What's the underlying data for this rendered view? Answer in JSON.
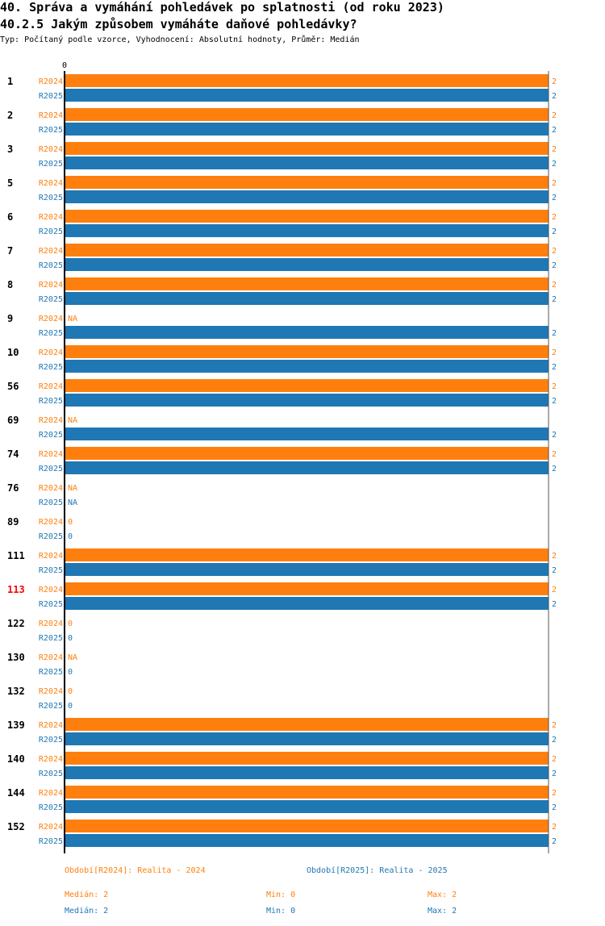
{
  "header": {
    "title": "40. Správa a vymáhání pohledávek po splatnosti (od roku 2023)",
    "subtitle": "40.2.5 Jakým způsobem vymáháte daňové pohledávky?",
    "meta": "Typ: Počítaný podle vzorce, Vyhodnocení: Absolutní hodnoty, Průměr: Medián"
  },
  "chart_data": {
    "type": "bar",
    "orientation": "horizontal",
    "xlim": [
      0,
      2
    ],
    "x_tick_labels": [
      "0"
    ],
    "series_colors": {
      "R2024": "#ff7f0e",
      "R2025": "#1f77b4"
    },
    "highlight_color": "#ff0000",
    "categories": [
      {
        "id": "1",
        "R2024": 2,
        "R2025": 2
      },
      {
        "id": "2",
        "R2024": 2,
        "R2025": 2
      },
      {
        "id": "3",
        "R2024": 2,
        "R2025": 2
      },
      {
        "id": "5",
        "R2024": 2,
        "R2025": 2
      },
      {
        "id": "6",
        "R2024": 2,
        "R2025": 2
      },
      {
        "id": "7",
        "R2024": 2,
        "R2025": 2
      },
      {
        "id": "8",
        "R2024": 2,
        "R2025": 2
      },
      {
        "id": "9",
        "R2024": "NA",
        "R2025": 2
      },
      {
        "id": "10",
        "R2024": 2,
        "R2025": 2
      },
      {
        "id": "56",
        "R2024": 2,
        "R2025": 2
      },
      {
        "id": "69",
        "R2024": "NA",
        "R2025": 2
      },
      {
        "id": "74",
        "R2024": 2,
        "R2025": 2
      },
      {
        "id": "76",
        "R2024": "NA",
        "R2025": "NA"
      },
      {
        "id": "89",
        "R2024": 0,
        "R2025": 0
      },
      {
        "id": "111",
        "R2024": 2,
        "R2025": 2
      },
      {
        "id": "113",
        "R2024": 2,
        "R2025": 2,
        "highlight": true
      },
      {
        "id": "122",
        "R2024": 0,
        "R2025": 0
      },
      {
        "id": "130",
        "R2024": "NA",
        "R2025": 0
      },
      {
        "id": "132",
        "R2024": 0,
        "R2025": 0
      },
      {
        "id": "139",
        "R2024": 2,
        "R2025": 2
      },
      {
        "id": "140",
        "R2024": 2,
        "R2025": 2
      },
      {
        "id": "144",
        "R2024": 2,
        "R2025": 2
      },
      {
        "id": "152",
        "R2024": 2,
        "R2025": 2
      }
    ],
    "series": [
      "R2024",
      "R2025"
    ]
  },
  "legend": {
    "r2024": "Období[R2024]: Realita - 2024",
    "r2025": "Období[R2025]: Realita - 2025"
  },
  "stats": {
    "r2024": {
      "median": "Medián: 2",
      "min": "Min: 0",
      "max": "Max: 2"
    },
    "r2025": {
      "median": "Medián: 2",
      "min": "Min: 0",
      "max": "Max: 2"
    }
  }
}
